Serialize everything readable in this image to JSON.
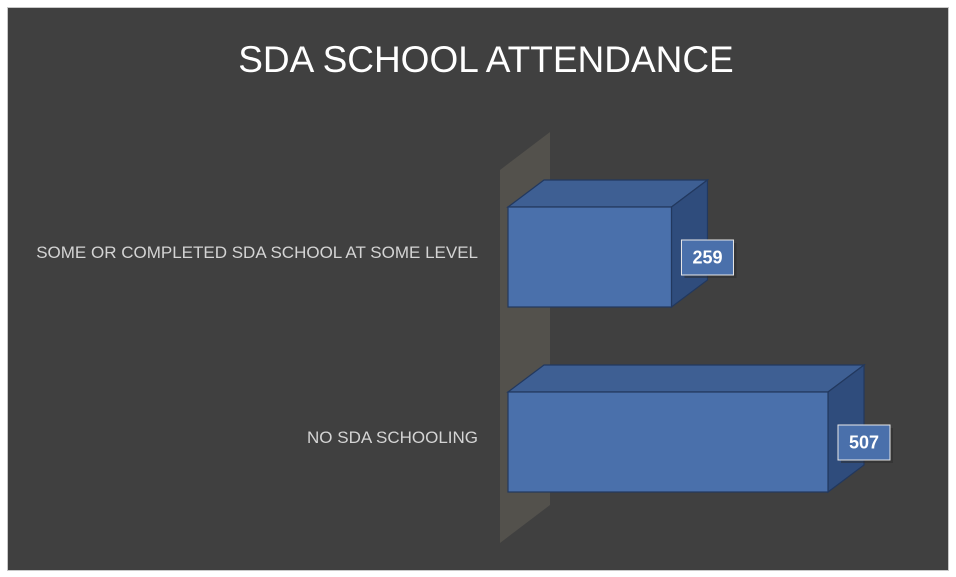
{
  "chart_data": {
    "type": "bar3d_horizontal",
    "title": "SDA SCHOOL ATTENDANCE",
    "categories": [
      "SOME OR COMPLETED SDA SCHOOL AT SOME LEVEL",
      "NO SDA SCHOOLING"
    ],
    "values": [
      259,
      507
    ],
    "color": "#4a70ab"
  }
}
